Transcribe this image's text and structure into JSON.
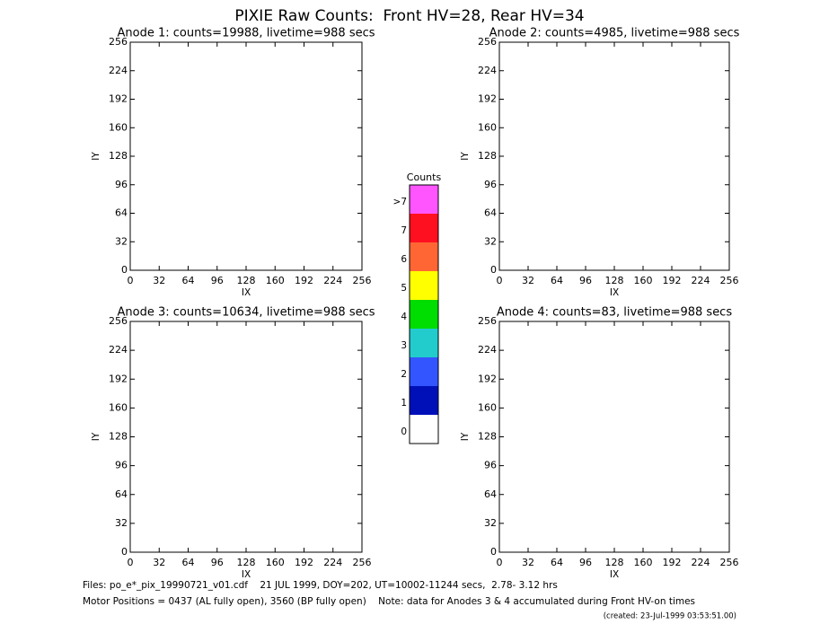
{
  "title": "PIXIE Raw Counts:  Front HV=28, Rear HV=34",
  "chart_data": [
    {
      "type": "heatmap",
      "subtitle": "Anode 1: counts=19988, livetime=988 secs",
      "xlabel": "IX",
      "ylabel": "IY",
      "xlim": [
        0,
        256
      ],
      "ylim": [
        0,
        256
      ],
      "xticks": [
        0,
        32,
        64,
        96,
        128,
        160,
        192,
        224,
        256
      ],
      "yticks": [
        0,
        32,
        64,
        96,
        128,
        160,
        192,
        224,
        256
      ]
    },
    {
      "type": "heatmap",
      "subtitle": "Anode 2: counts=4985, livetime=988 secs",
      "xlabel": "IX",
      "ylabel": "IY",
      "xlim": [
        0,
        256
      ],
      "ylim": [
        0,
        256
      ],
      "xticks": [
        0,
        32,
        64,
        96,
        128,
        160,
        192,
        224,
        256
      ],
      "yticks": [
        0,
        32,
        64,
        96,
        128,
        160,
        192,
        224,
        256
      ]
    },
    {
      "type": "heatmap",
      "subtitle": "Anode 3: counts=10634, livetime=988 secs",
      "xlabel": "IX",
      "ylabel": "IY",
      "xlim": [
        0,
        256
      ],
      "ylim": [
        0,
        256
      ],
      "xticks": [
        0,
        32,
        64,
        96,
        128,
        160,
        192,
        224,
        256
      ],
      "yticks": [
        0,
        32,
        64,
        96,
        128,
        160,
        192,
        224,
        256
      ]
    },
    {
      "type": "heatmap",
      "subtitle": "Anode 4: counts=83, livetime=988 secs",
      "xlabel": "IX",
      "ylabel": "IY",
      "xlim": [
        0,
        256
      ],
      "ylim": [
        0,
        256
      ],
      "xticks": [
        0,
        32,
        64,
        96,
        128,
        160,
        192,
        224,
        256
      ],
      "yticks": [
        0,
        32,
        64,
        96,
        128,
        160,
        192,
        224,
        256
      ]
    }
  ],
  "colorbar": {
    "title": "Counts",
    "ticks": [
      {
        "value": 8,
        "label": ">7"
      },
      7,
      6,
      5,
      4,
      3,
      2,
      1,
      0
    ],
    "colors": [
      "#ff55ff",
      "#ff1020",
      "#ff6633",
      "#ffff00",
      "#00dd00",
      "#22cccc",
      "#3355ff",
      "#0010b8",
      "#ffffff"
    ]
  },
  "footer": {
    "files": "Files: po_e*_pix_19990721_v01.cdf    21 JUL 1999, DOY=202, UT=10002-11244 secs,  2.78- 3.12 hrs",
    "motor": "Motor Positions = 0437 (AL fully open), 3560 (BP fully open)    Note: data for Anodes 3 & 4 accumulated during Front HV-on times",
    "created": "(created: 23-Jul-1999 03:53:51.00)"
  }
}
